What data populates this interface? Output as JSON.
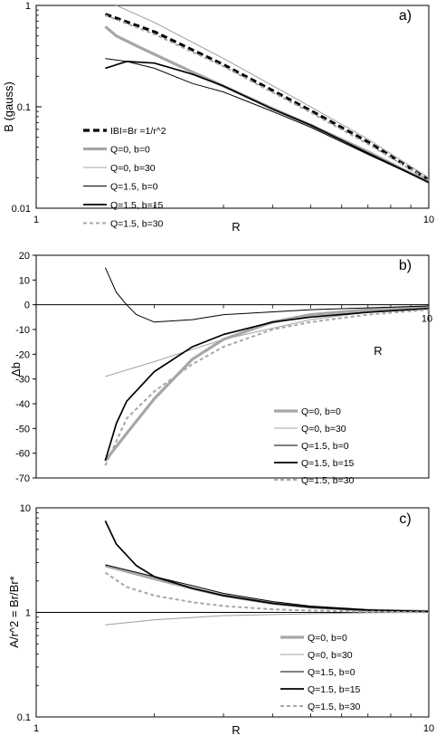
{
  "chart_data": [
    {
      "type": "line",
      "panel_label": "a)",
      "xlabel": "R",
      "ylabel": "B (gauss)",
      "xscale": "log",
      "yscale": "log",
      "xlim": [
        1,
        10
      ],
      "ylim": [
        0.01,
        1
      ],
      "x_ticks": [
        "1",
        "10"
      ],
      "y_ticks": [
        "0.01",
        "0.1",
        "1"
      ],
      "legend_position": "left",
      "series": [
        {
          "name": "IBI=Br =1/r^2",
          "style": "dashed-black-thick",
          "x": [
            1.5,
            2,
            3,
            5,
            7,
            10
          ],
          "y": [
            0.82,
            0.55,
            0.26,
            0.092,
            0.045,
            0.019
          ]
        },
        {
          "name": "Q=0, b=0",
          "style": "solid-gray-thick",
          "x": [
            1.5,
            1.6,
            1.8,
            2,
            2.5,
            3,
            4,
            5,
            7,
            10
          ],
          "y": [
            0.62,
            0.5,
            0.4,
            0.33,
            0.22,
            0.16,
            0.096,
            0.066,
            0.036,
            0.018
          ]
        },
        {
          "name": "Q=0, b=30",
          "style": "solid-gray-thin",
          "x": [
            1.6,
            2,
            3,
            5,
            7,
            10
          ],
          "y": [
            1.0,
            0.68,
            0.3,
            0.1,
            0.048,
            0.02
          ]
        },
        {
          "name": "Q=1.5, b=0",
          "style": "solid-black-thin",
          "x": [
            1.5,
            1.7,
            2,
            2.5,
            3,
            4,
            5,
            7,
            10
          ],
          "y": [
            0.3,
            0.28,
            0.24,
            0.17,
            0.14,
            0.09,
            0.063,
            0.034,
            0.018
          ]
        },
        {
          "name": "Q=1.5, b=15",
          "style": "solid-black-medium",
          "x": [
            1.5,
            1.7,
            2,
            2.5,
            3,
            4,
            5,
            7,
            10
          ],
          "y": [
            0.24,
            0.28,
            0.27,
            0.21,
            0.16,
            0.095,
            0.066,
            0.035,
            0.018
          ]
        },
        {
          "name": "Q=1.5, b=30",
          "style": "dashed-gray",
          "x": [
            1.5,
            2,
            3,
            5,
            7,
            10
          ],
          "y": [
            0.8,
            0.52,
            0.25,
            0.088,
            0.043,
            0.019
          ]
        }
      ]
    },
    {
      "type": "line",
      "panel_label": "b)",
      "xlabel": "R",
      "ylabel": "Δb",
      "xscale": "log",
      "yscale": "linear",
      "xlim": [
        1,
        10
      ],
      "ylim": [
        -70,
        20
      ],
      "x_ticks": [
        "10"
      ],
      "y_ticks": [
        "20",
        "10",
        "0",
        "-10",
        "-20",
        "-30",
        "-40",
        "-50",
        "-60",
        "-70"
      ],
      "legend_position": "bottom-right",
      "series": [
        {
          "name": "Q=0, b=0",
          "style": "solid-gray-thick",
          "x": [
            1.5,
            1.7,
            2,
            2.5,
            3,
            4,
            5,
            7,
            10
          ],
          "y": [
            -63,
            -52,
            -38,
            -22,
            -14,
            -7,
            -4,
            -2,
            -1
          ]
        },
        {
          "name": "Q=0, b=30",
          "style": "solid-gray-thin",
          "x": [
            1.5,
            2,
            3,
            5,
            7,
            10
          ],
          "y": [
            -29,
            -23,
            -14,
            -6,
            -3,
            -1
          ]
        },
        {
          "name": "Q=1.5, b=0",
          "style": "solid-black-thin",
          "x": [
            1.5,
            1.6,
            1.7,
            1.8,
            2,
            2.5,
            3,
            5,
            10
          ],
          "y": [
            15,
            5,
            0,
            -4,
            -7,
            -6,
            -4,
            -2,
            -0.5
          ]
        },
        {
          "name": "Q=1.5, b=15",
          "style": "solid-black-medium",
          "x": [
            1.5,
            1.6,
            1.7,
            2,
            2.5,
            3,
            4,
            5,
            7,
            10
          ],
          "y": [
            -63,
            -48,
            -39,
            -27,
            -17,
            -12,
            -7,
            -5,
            -3,
            -1.5
          ]
        },
        {
          "name": "Q=1.5, b=30",
          "style": "dashed-gray",
          "x": [
            1.5,
            1.7,
            2,
            2.5,
            3,
            4,
            5,
            7,
            10
          ],
          "y": [
            -65,
            -46,
            -35,
            -24,
            -17,
            -10,
            -7,
            -4,
            -2
          ]
        }
      ]
    },
    {
      "type": "line",
      "panel_label": "c)",
      "xlabel": "R",
      "ylabel": "A/r^2 = Br/Br*",
      "xscale": "log",
      "yscale": "log",
      "xlim": [
        1,
        10
      ],
      "ylim": [
        0.1,
        10
      ],
      "x_ticks": [
        "1",
        "10"
      ],
      "y_ticks": [
        "0.1",
        "1",
        "10"
      ],
      "legend_position": "bottom-right",
      "series": [
        {
          "name": "Q=0, b=0",
          "style": "solid-gray-thick",
          "x": [
            1.5,
            2,
            2.5,
            3,
            4,
            5,
            7,
            10
          ],
          "y": [
            2.8,
            2.1,
            1.7,
            1.45,
            1.22,
            1.12,
            1.05,
            1.02
          ]
        },
        {
          "name": "Q=0, b=30",
          "style": "solid-gray-thin",
          "x": [
            1.5,
            2,
            3,
            5,
            7,
            10
          ],
          "y": [
            0.76,
            0.85,
            0.93,
            0.97,
            0.99,
            1.0
          ]
        },
        {
          "name": "Q=1.5, b=0",
          "style": "solid-black-thin",
          "x": [
            1.5,
            2,
            2.5,
            3,
            4,
            5,
            7,
            10
          ],
          "y": [
            2.85,
            2.2,
            1.8,
            1.52,
            1.27,
            1.15,
            1.06,
            1.02
          ]
        },
        {
          "name": "Q=1.5, b=15",
          "style": "solid-black-medium",
          "x": [
            1.5,
            1.6,
            1.8,
            2,
            2.5,
            3,
            4,
            5,
            7,
            10
          ],
          "y": [
            7.5,
            4.5,
            2.8,
            2.2,
            1.7,
            1.45,
            1.22,
            1.12,
            1.05,
            1.02
          ]
        },
        {
          "name": "Q=1.5, b=30",
          "style": "dashed-gray",
          "x": [
            1.5,
            1.7,
            2,
            2.5,
            3,
            4,
            5,
            7,
            10
          ],
          "y": [
            2.4,
            1.75,
            1.45,
            1.25,
            1.15,
            1.07,
            1.04,
            1.02,
            1.0
          ]
        }
      ]
    }
  ]
}
